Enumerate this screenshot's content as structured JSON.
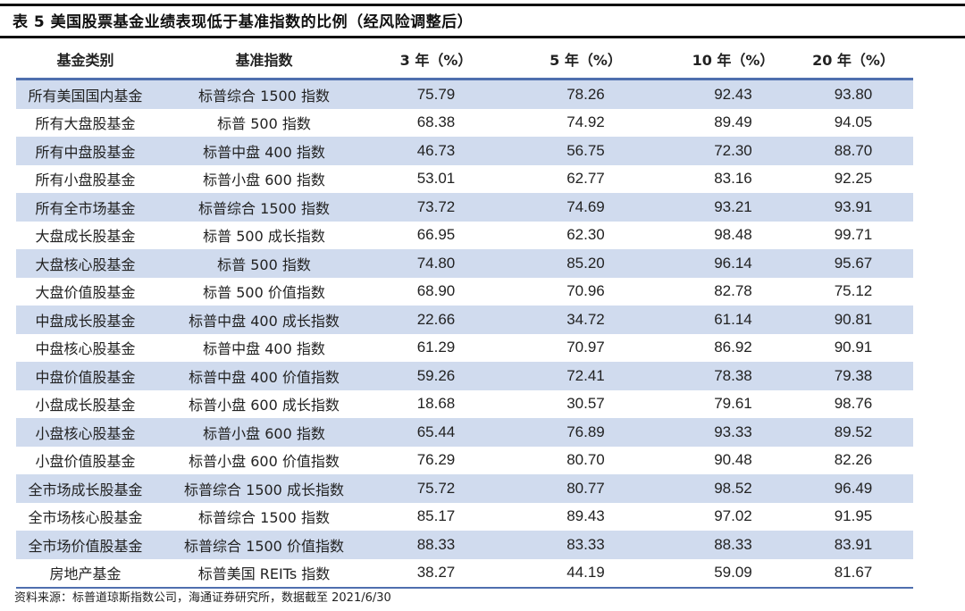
{
  "title": "表 5 美国股票基金业绩表现低于基准指数的比例（经风险调整后）",
  "columns": [
    "基金类别",
    "基准指数",
    "3 年（%）",
    "5 年（%）",
    "10 年（%）",
    "20 年（%）"
  ],
  "rows": [
    [
      "所有美国国内基金",
      "标普综合 1500 指数",
      "75.79",
      "78.26",
      "92.43",
      "93.80"
    ],
    [
      "所有大盘股基金",
      "标普 500 指数",
      "68.38",
      "74.92",
      "89.49",
      "94.05"
    ],
    [
      "所有中盘股基金",
      "标普中盘 400 指数",
      "46.73",
      "56.75",
      "72.30",
      "88.70"
    ],
    [
      "所有小盘股基金",
      "标普小盘 600 指数",
      "53.01",
      "62.77",
      "83.16",
      "92.25"
    ],
    [
      "所有全市场基金",
      "标普综合 1500 指数",
      "73.72",
      "74.69",
      "93.21",
      "93.91"
    ],
    [
      "大盘成长股基金",
      "标普 500 成长指数",
      "66.95",
      "62.30",
      "98.48",
      "99.71"
    ],
    [
      "大盘核心股基金",
      "标普 500 指数",
      "74.80",
      "85.20",
      "96.14",
      "95.67"
    ],
    [
      "大盘价值股基金",
      "标普 500 价值指数",
      "68.90",
      "70.96",
      "82.78",
      "75.12"
    ],
    [
      "中盘成长股基金",
      "标普中盘 400 成长指数",
      "22.66",
      "34.72",
      "61.14",
      "90.81"
    ],
    [
      "中盘核心股基金",
      "标普中盘 400 指数",
      "61.29",
      "70.97",
      "86.92",
      "90.91"
    ],
    [
      "中盘价值股基金",
      "标普中盘 400 价值指数",
      "59.26",
      "72.41",
      "78.38",
      "79.38"
    ],
    [
      "小盘成长股基金",
      "标普小盘 600 成长指数",
      "18.68",
      "30.57",
      "79.61",
      "98.76"
    ],
    [
      "小盘核心股基金",
      "标普小盘 600 指数",
      "65.44",
      "76.89",
      "93.33",
      "89.52"
    ],
    [
      "小盘价值股基金",
      "标普小盘 600 价值指数",
      "76.29",
      "80.70",
      "90.48",
      "82.26"
    ],
    [
      "全市场成长股基金",
      "标普综合 1500 成长指数",
      "75.72",
      "80.77",
      "98.52",
      "96.49"
    ],
    [
      "全市场核心股基金",
      "标普综合 1500 指数",
      "85.17",
      "89.43",
      "97.02",
      "91.95"
    ],
    [
      "全市场价值股基金",
      "标普综合 1500 价值指数",
      "88.33",
      "83.33",
      "88.33",
      "83.91"
    ],
    [
      "房地产基金",
      "标普美国 REITs 指数",
      "38.27",
      "44.19",
      "59.09",
      "81.67"
    ]
  ],
  "footer": "资料来源：标普道琼斯指数公司，海通证券研究所，数据截至 2021/6/30",
  "colors": {
    "stripe": "#d0dbee",
    "header_rule": "#4f6fae"
  }
}
